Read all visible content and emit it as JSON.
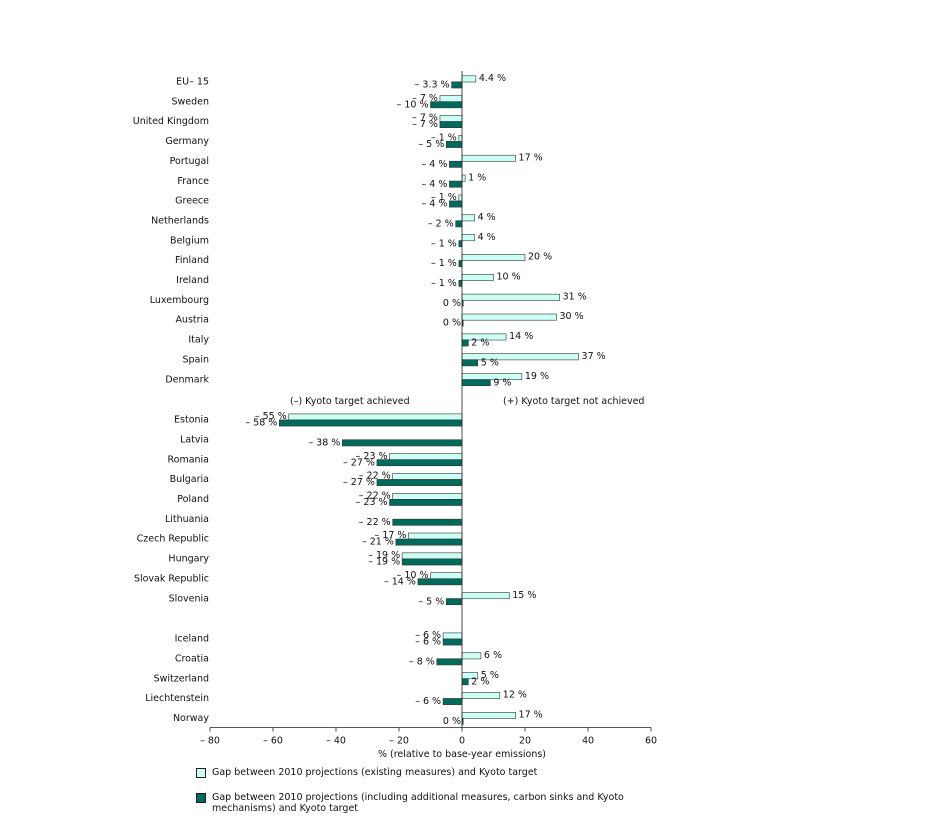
{
  "chart_data": {
    "type": "bar",
    "orientation": "horizontal",
    "xlabel": "% (relative to base-year emissions)",
    "xlim": [
      -80,
      60
    ],
    "xticks": [
      "– 80",
      "– 60",
      "– 40",
      "– 20",
      "0",
      "20",
      "40",
      "60"
    ],
    "grid": false,
    "legend_position": "bottom",
    "series": [
      {
        "name": "Gap between 2010 projections (existing measures) and Kyoto target",
        "color": "#ccfff5"
      },
      {
        "name": "Gap between 2010 projections (including additional measures, carbon sinks and Kyoto mechanisms) and Kyoto target",
        "color": "#006b5c"
      }
    ],
    "annotations": {
      "left": "(–) Kyoto target achieved",
      "right": "(+) Kyoto target not achieved"
    },
    "categories": [
      {
        "name": "EU– 15",
        "group": 0,
        "values": [
          4.4,
          -3.3
        ],
        "labels": [
          "4.4 %",
          "– 3.3 %"
        ]
      },
      {
        "name": "Sweden",
        "group": 0,
        "values": [
          -7,
          -10
        ],
        "labels": [
          "– 7 %",
          "– 10 %"
        ]
      },
      {
        "name": "United Kingdom",
        "group": 0,
        "values": [
          -7,
          -7
        ],
        "labels": [
          "– 7 %",
          "– 7 %"
        ]
      },
      {
        "name": "Germany",
        "group": 0,
        "values": [
          -1,
          -5
        ],
        "labels": [
          "– 1 %",
          "– 5 %"
        ]
      },
      {
        "name": "Portugal",
        "group": 0,
        "values": [
          17,
          -4
        ],
        "labels": [
          "17 %",
          "– 4 %"
        ]
      },
      {
        "name": "France",
        "group": 0,
        "values": [
          1,
          -4
        ],
        "labels": [
          "1 %",
          "– 4 %"
        ]
      },
      {
        "name": "Greece",
        "group": 0,
        "values": [
          -1,
          -4
        ],
        "labels": [
          "– 1 %",
          "– 4 %"
        ]
      },
      {
        "name": "Netherlands",
        "group": 0,
        "values": [
          4,
          -2
        ],
        "labels": [
          "4 %",
          "– 2 %"
        ]
      },
      {
        "name": "Belgium",
        "group": 0,
        "values": [
          4,
          -1
        ],
        "labels": [
          "4 %",
          "– 1 %"
        ]
      },
      {
        "name": "Finland",
        "group": 0,
        "values": [
          20,
          -1
        ],
        "labels": [
          "20 %",
          "– 1 %"
        ]
      },
      {
        "name": "Ireland",
        "group": 0,
        "values": [
          10,
          -1
        ],
        "labels": [
          "10 %",
          "– 1 %"
        ]
      },
      {
        "name": "Luxembourg",
        "group": 0,
        "values": [
          31,
          0
        ],
        "labels": [
          "31 %",
          "0 %"
        ]
      },
      {
        "name": "Austria",
        "group": 0,
        "values": [
          30,
          0
        ],
        "labels": [
          "30 %",
          "0 %"
        ]
      },
      {
        "name": "Italy",
        "group": 0,
        "values": [
          14,
          2
        ],
        "labels": [
          "14 %",
          "2 %"
        ]
      },
      {
        "name": "Spain",
        "group": 0,
        "values": [
          37,
          5
        ],
        "labels": [
          "37 %",
          "5 %"
        ]
      },
      {
        "name": "Denmark",
        "group": 0,
        "values": [
          19,
          9
        ],
        "labels": [
          "19 %",
          "9 %"
        ]
      },
      {
        "name": "Estonia",
        "group": 1,
        "values": [
          -55,
          -58
        ],
        "labels": [
          "– 55 %",
          "– 58 %"
        ]
      },
      {
        "name": "Latvia",
        "group": 1,
        "values": [
          null,
          -38
        ],
        "labels": [
          "",
          "– 38 %"
        ]
      },
      {
        "name": "Romania",
        "group": 1,
        "values": [
          -23,
          -27
        ],
        "labels": [
          "– 23 %",
          "– 27 %"
        ]
      },
      {
        "name": "Bulgaria",
        "group": 1,
        "values": [
          -22,
          -27
        ],
        "labels": [
          "– 22 %",
          "– 27 %"
        ]
      },
      {
        "name": "Poland",
        "group": 1,
        "values": [
          -22,
          -23
        ],
        "labels": [
          "– 22 %",
          "– 23 %"
        ]
      },
      {
        "name": "Lithuania",
        "group": 1,
        "values": [
          null,
          -22
        ],
        "labels": [
          "",
          "– 22 %"
        ]
      },
      {
        "name": "Czech Republic",
        "group": 1,
        "values": [
          -17,
          -21
        ],
        "labels": [
          "– 17 %",
          "– 21 %"
        ]
      },
      {
        "name": "Hungary",
        "group": 1,
        "values": [
          -19,
          -19
        ],
        "labels": [
          "– 19 %",
          "– 19 %"
        ]
      },
      {
        "name": "Slovak Republic",
        "group": 1,
        "values": [
          -10,
          -14
        ],
        "labels": [
          "– 10 %",
          "– 14 %"
        ]
      },
      {
        "name": "Slovenia",
        "group": 1,
        "values": [
          15,
          -5
        ],
        "labels": [
          "15 %",
          "– 5 %"
        ]
      },
      {
        "name": "Iceland",
        "group": 2,
        "values": [
          -6,
          -6
        ],
        "labels": [
          "– 6 %",
          "– 6 %"
        ]
      },
      {
        "name": "Croatia",
        "group": 2,
        "values": [
          6,
          -8
        ],
        "labels": [
          "6 %",
          "– 8 %"
        ]
      },
      {
        "name": "Switzerland",
        "group": 2,
        "values": [
          5,
          2
        ],
        "labels": [
          "5 %",
          "2 %"
        ]
      },
      {
        "name": "Liechtenstein",
        "group": 2,
        "values": [
          12,
          -6
        ],
        "labels": [
          "12 %",
          "– 6 %"
        ]
      },
      {
        "name": "Norway",
        "group": 2,
        "values": [
          17,
          0
        ],
        "labels": [
          "17 %",
          "0 %"
        ]
      }
    ]
  }
}
